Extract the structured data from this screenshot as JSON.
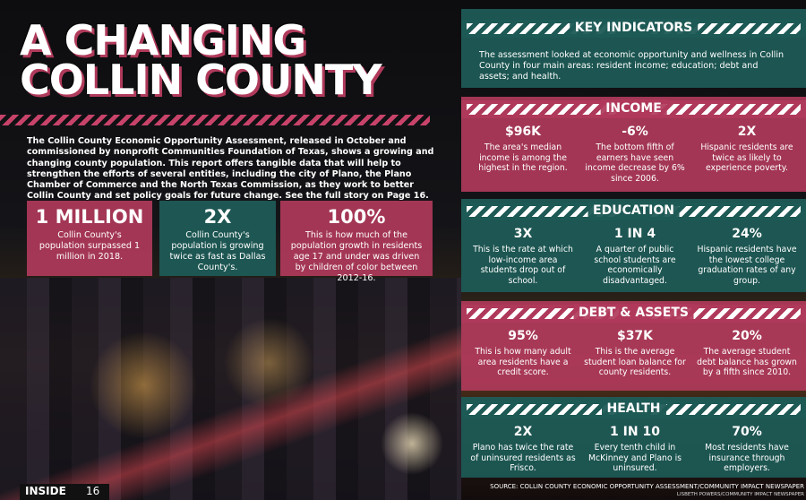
{
  "title": [
    "A CHANGING",
    "COLLIN COUNTY"
  ],
  "intro": "The Collin County Economic Opportunity Assessment, released in October and commissioned by nonprofit Communities Foundation of Texas, shows a growing and changing county population. This report offers tangible data that will help to strengthen the efforts of several entities, including the city of Plano, the Plano Chamber of Commerce and the North Texas Commission, as they work to better Collin County and set policy goals for future change. See the full story on Page 16.",
  "stats": [
    {
      "value": "1 MILLION",
      "text": "Collin County's population surpassed 1 million in 2018."
    },
    {
      "value": "2X",
      "text": "Collin County's population is growing twice as fast as Dallas County's."
    },
    {
      "value": "100%",
      "text": "This is how much of the population growth in residents age 17 and under was driven by children of color between 2012-16."
    }
  ],
  "key_indicators": {
    "title": "KEY INDICATORS",
    "text": "The assessment looked at economic opportunity and wellness in Collin County in four main areas: resident income; education; debt and assets; and health."
  },
  "sections": [
    {
      "title": "INCOME",
      "items": [
        {
          "value": "$96K",
          "text": "The area's median income is among the highest in the region."
        },
        {
          "value": "-6%",
          "text": "The bottom fifth of earners have seen income decrease by 6% since 2006."
        },
        {
          "value": "2X",
          "text": "Hispanic residents are twice as likely to experience poverty."
        }
      ]
    },
    {
      "title": "EDUCATION",
      "items": [
        {
          "value": "3X",
          "text": "This is the rate at which low-income area students drop out of school."
        },
        {
          "value": "1 IN 4",
          "text": "A quarter of public school students are economically disadvantaged."
        },
        {
          "value": "24%",
          "text": "Hispanic residents have the lowest college graduation rates of any group."
        }
      ]
    },
    {
      "title": "DEBT & ASSETS",
      "items": [
        {
          "value": "95%",
          "text": "This is how many adult area residents have a credit score."
        },
        {
          "value": "$37K",
          "text": "This is the average student loan balance for county residents."
        },
        {
          "value": "20%",
          "text": "The average student debt balance has grown by a fifth since 2010."
        }
      ]
    },
    {
      "title": "HEALTH",
      "items": [
        {
          "value": "2X",
          "text": "Plano has twice the rate of uninsured residents as Frisco."
        },
        {
          "value": "1 IN 10",
          "text": "Every tenth child in McKinney and Plano is uninsured."
        },
        {
          "value": "70%",
          "text": "Most residents have insurance through employers."
        }
      ]
    }
  ],
  "source": "SOURCE: COLLIN COUNTY ECONOMIC OPPORTUNITY ASSESSMENT/COMMUNITY IMPACT NEWSPAPER",
  "credit": "LISBETH POWERS/COMMUNITY IMPACT NEWSPAPER",
  "footer": {
    "section": "INSIDE",
    "page": "16"
  }
}
